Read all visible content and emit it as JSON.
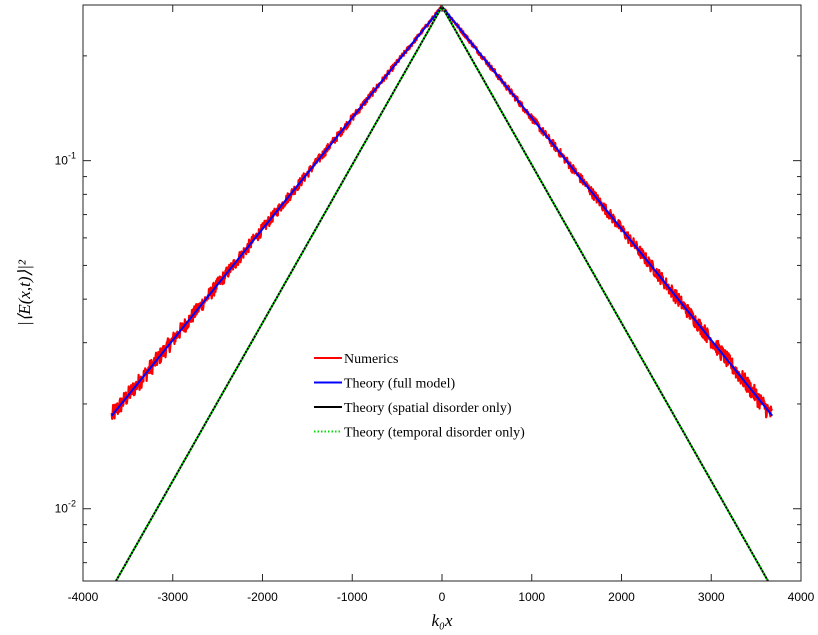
{
  "chart_data": {
    "type": "line",
    "title": "",
    "xlabel": "k₀x",
    "ylabel": "|⟨E(x,t)⟩|²",
    "xlim": [
      -4000,
      4000
    ],
    "ylim": [
      0.0062,
      0.28
    ],
    "y_scale": "log",
    "x_ticks": [
      -4000,
      -3000,
      -2000,
      -1000,
      0,
      1000,
      2000,
      3000,
      4000
    ],
    "x_tick_labels": [
      "-4000",
      "-3000",
      "-2000",
      "-1000",
      "0",
      "1000",
      "2000",
      "3000",
      "4000"
    ],
    "y_major_ticks": [
      {
        "base": "10",
        "exp": "-1",
        "value": 0.1
      },
      {
        "base": "10",
        "exp": "-2",
        "value": 0.01
      }
    ],
    "grid": false,
    "legend_position": "center",
    "series": [
      {
        "name": "Numerics",
        "color": "#ff0000",
        "style": "solid",
        "x_range": [
          -3680,
          3680
        ],
        "peak": 0.277,
        "end_value": 0.0185,
        "noisy": true
      },
      {
        "name": "Theory (full model)",
        "color": "#0000ff",
        "style": "solid",
        "x": [
          -3680,
          0,
          3680
        ],
        "y": [
          0.0185,
          0.277,
          0.0185
        ]
      },
      {
        "name": "Theory (spatial disorder only)",
        "color": "#000000",
        "style": "solid",
        "x": [
          -3680,
          0,
          3680
        ],
        "y": [
          0.0059,
          0.277,
          0.0059
        ]
      },
      {
        "name": "Theory (temporal disorder only)",
        "color": "#00dd00",
        "style": "dotted",
        "x": [
          -3680,
          0,
          3680
        ],
        "y": [
          0.0059,
          0.277,
          0.0059
        ]
      }
    ]
  }
}
